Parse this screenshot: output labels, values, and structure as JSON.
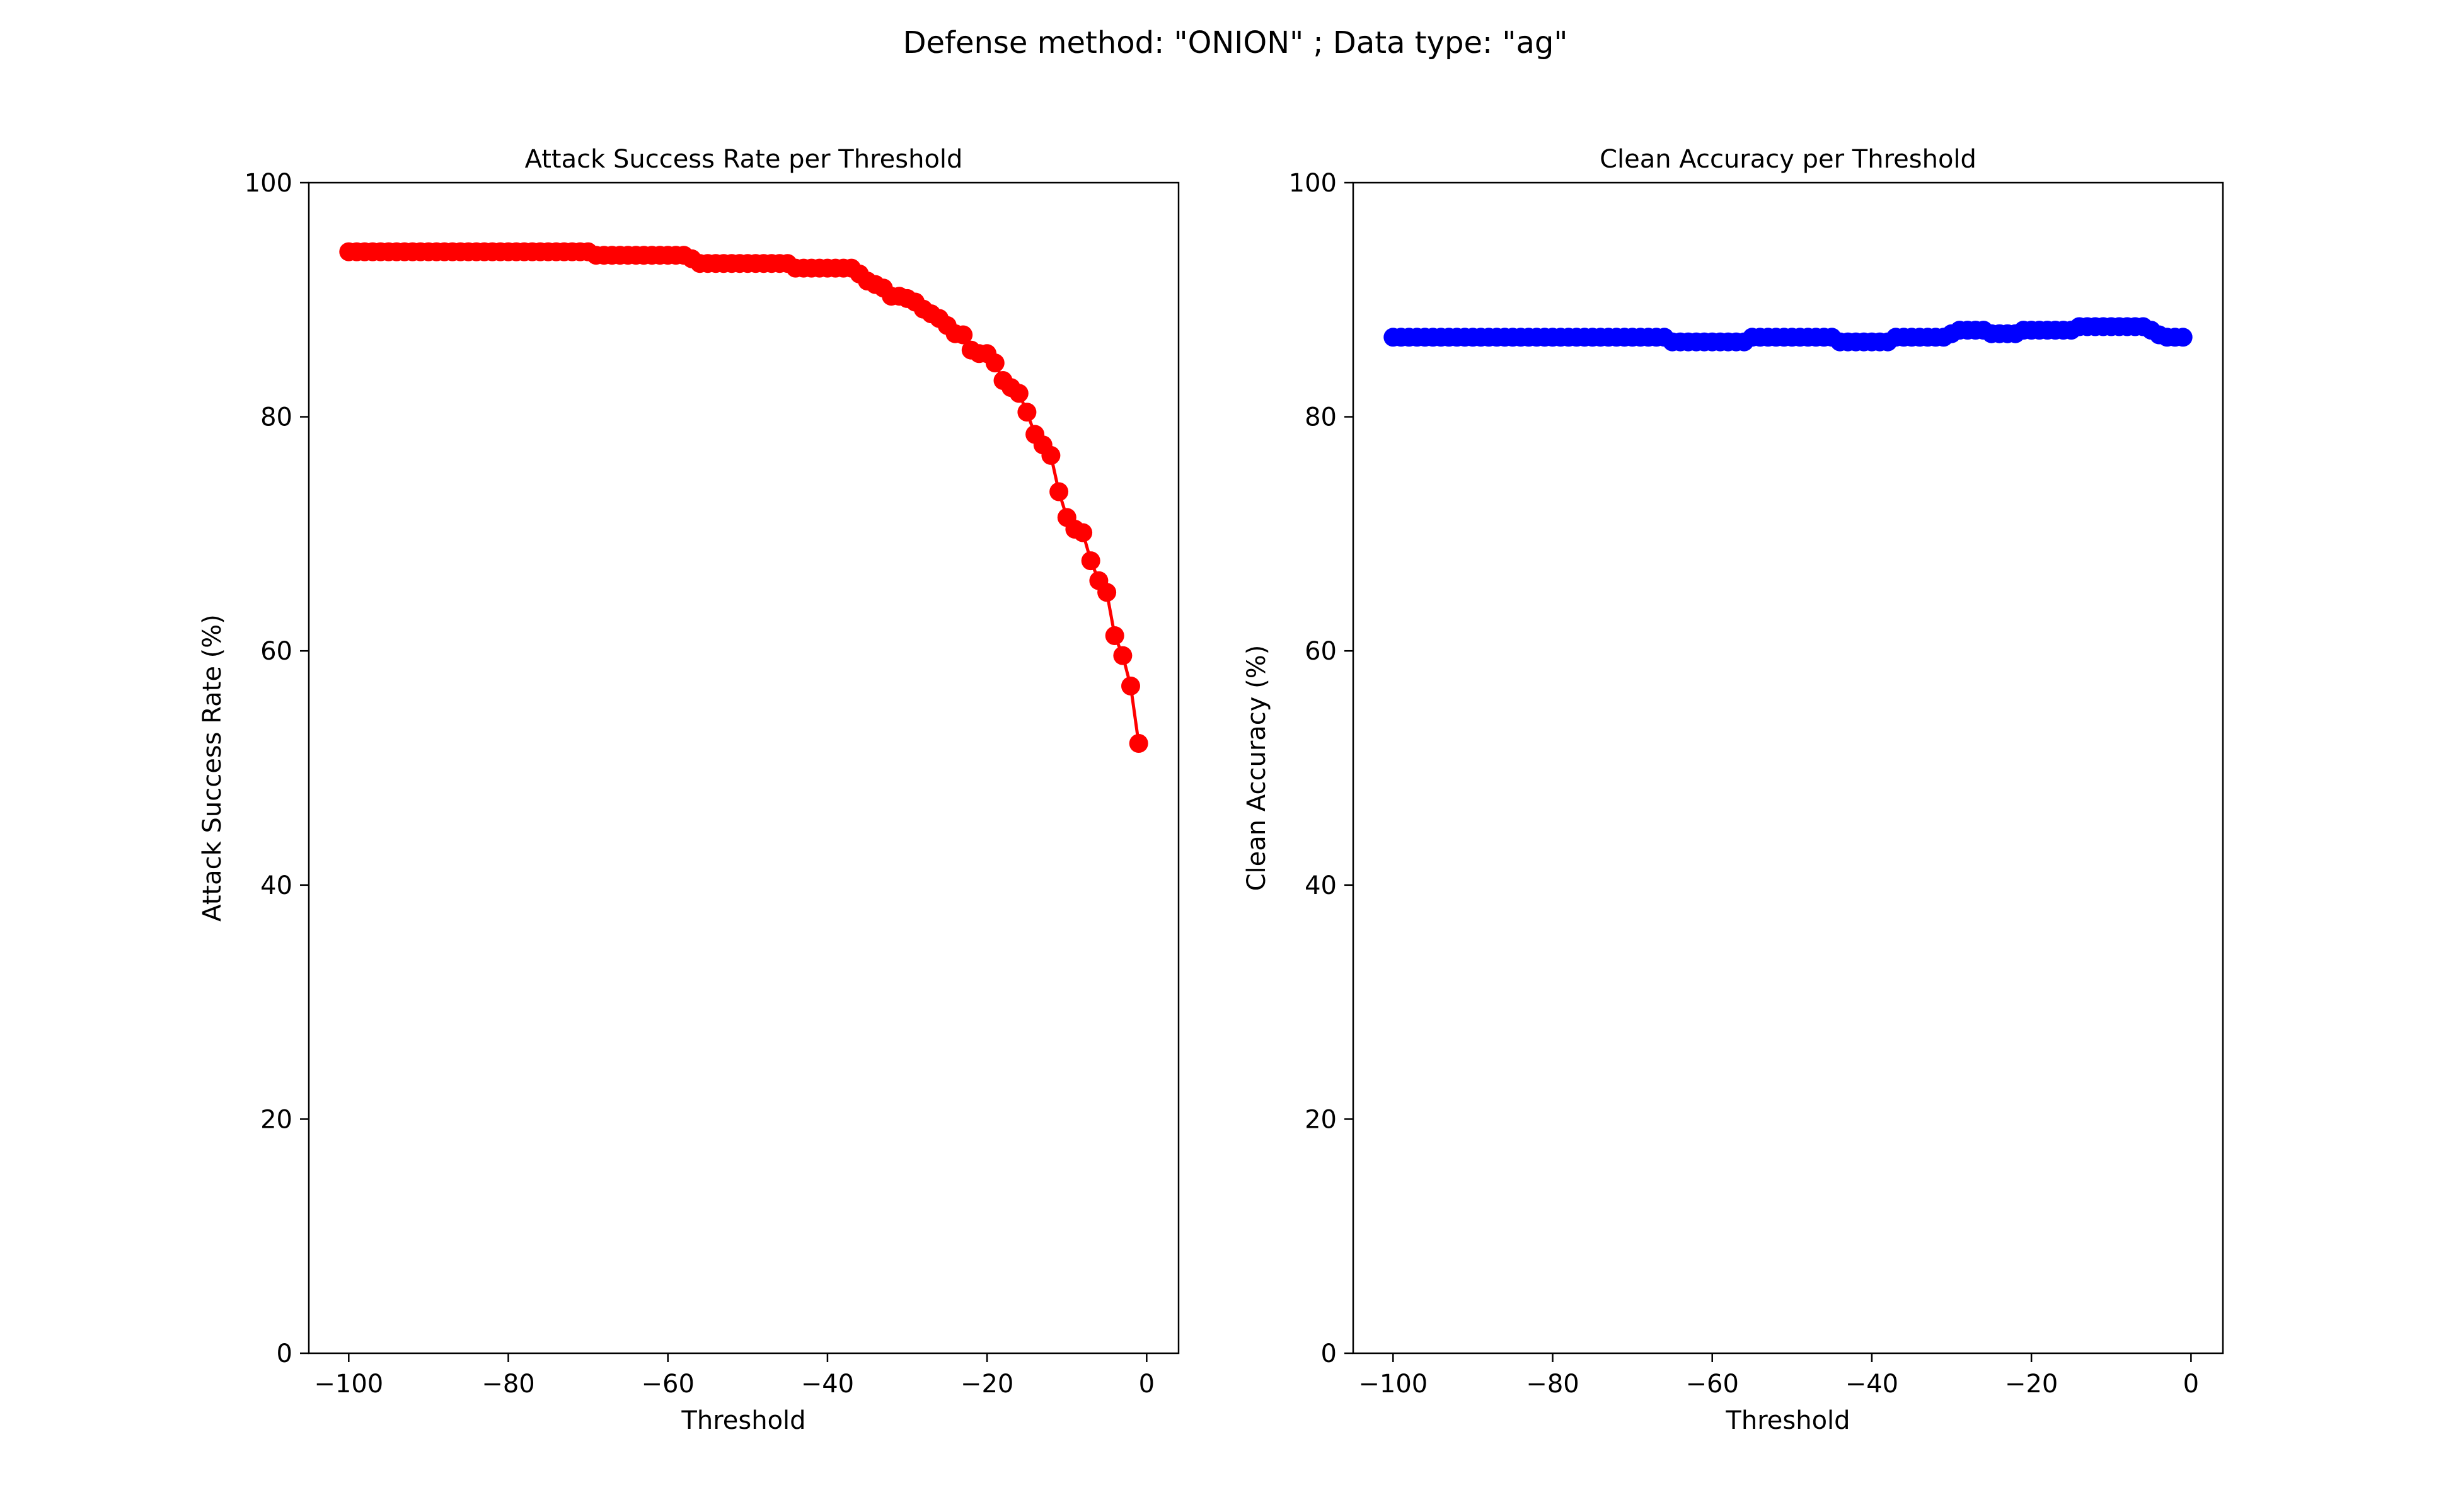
{
  "figure": {
    "suptitle": "Defense method: \"ONION\" ; Data type: \"ag\""
  },
  "chart_data": [
    {
      "type": "line",
      "title": "Attack Success Rate per Threshold",
      "xlabel": "Threshold",
      "ylabel": "Attack Success Rate (%)",
      "xlim": [
        -105,
        4
      ],
      "ylim": [
        0,
        100
      ],
      "xticks": [
        -100,
        -80,
        -60,
        -40,
        -20,
        0
      ],
      "xtick_labels": [
        "−100",
        "−80",
        "−60",
        "−40",
        "−20",
        "0"
      ],
      "yticks": [
        0,
        20,
        40,
        60,
        80,
        100
      ],
      "ytick_labels": [
        "0",
        "20",
        "40",
        "60",
        "80",
        "100"
      ],
      "grid": false,
      "series": [
        {
          "color": "#ff0000",
          "marker": "circle",
          "x": [
            -100,
            -99,
            -98,
            -97,
            -96,
            -95,
            -94,
            -93,
            -92,
            -91,
            -90,
            -89,
            -88,
            -87,
            -86,
            -85,
            -84,
            -83,
            -82,
            -81,
            -80,
            -79,
            -78,
            -77,
            -76,
            -75,
            -74,
            -73,
            -72,
            -71,
            -70,
            -69,
            -68,
            -67,
            -66,
            -65,
            -64,
            -63,
            -62,
            -61,
            -60,
            -59,
            -58,
            -57,
            -56,
            -55,
            -54,
            -53,
            -52,
            -51,
            -50,
            -49,
            -48,
            -47,
            -46,
            -45,
            -44,
            -43,
            -42,
            -41,
            -40,
            -39,
            -38,
            -37,
            -36,
            -35,
            -34,
            -33,
            -32,
            -31,
            -30,
            -29,
            -28,
            -27,
            -26,
            -25,
            -24,
            -23,
            -22,
            -21,
            -20,
            -19,
            -18,
            -17,
            -16,
            -15,
            -14,
            -13,
            -12,
            -11,
            -10,
            -9,
            -8,
            -7,
            -6,
            -5,
            -4,
            -3,
            -2,
            -1
          ],
          "y": [
            94.1,
            94.1,
            94.1,
            94.1,
            94.1,
            94.1,
            94.1,
            94.1,
            94.1,
            94.1,
            94.1,
            94.1,
            94.1,
            94.1,
            94.1,
            94.1,
            94.1,
            94.1,
            94.1,
            94.1,
            94.1,
            94.1,
            94.1,
            94.1,
            94.1,
            94.1,
            94.1,
            94.1,
            94.1,
            94.1,
            94.1,
            93.8,
            93.8,
            93.8,
            93.8,
            93.8,
            93.8,
            93.8,
            93.8,
            93.8,
            93.8,
            93.8,
            93.8,
            93.5,
            93.1,
            93.1,
            93.1,
            93.1,
            93.1,
            93.1,
            93.1,
            93.1,
            93.1,
            93.1,
            93.1,
            93.1,
            92.7,
            92.7,
            92.7,
            92.7,
            92.7,
            92.7,
            92.7,
            92.7,
            92.2,
            91.6,
            91.3,
            91.0,
            90.3,
            90.3,
            90.1,
            89.8,
            89.2,
            88.8,
            88.4,
            87.8,
            87.1,
            87.0,
            85.7,
            85.4,
            85.4,
            84.6,
            83.1,
            82.5,
            82.0,
            80.4,
            78.5,
            77.6,
            76.7,
            73.6,
            71.4,
            70.4,
            70.1,
            67.7,
            66.0,
            65.0,
            61.3,
            59.6,
            57.0,
            52.1
          ]
        }
      ]
    },
    {
      "type": "line",
      "title": "Clean Accuracy per Threshold",
      "xlabel": "Threshold",
      "ylabel": "Clean Accuracy (%)",
      "xlim": [
        -105,
        4
      ],
      "ylim": [
        0,
        100
      ],
      "xticks": [
        -100,
        -80,
        -60,
        -40,
        -20,
        0
      ],
      "xtick_labels": [
        "−100",
        "−80",
        "−60",
        "−40",
        "−20",
        "0"
      ],
      "yticks": [
        0,
        20,
        40,
        60,
        80,
        100
      ],
      "ytick_labels": [
        "0",
        "20",
        "40",
        "60",
        "80",
        "100"
      ],
      "grid": false,
      "series": [
        {
          "color": "#0000ff",
          "marker": "circle",
          "x": [
            -100,
            -99,
            -98,
            -97,
            -96,
            -95,
            -94,
            -93,
            -92,
            -91,
            -90,
            -89,
            -88,
            -87,
            -86,
            -85,
            -84,
            -83,
            -82,
            -81,
            -80,
            -79,
            -78,
            -77,
            -76,
            -75,
            -74,
            -73,
            -72,
            -71,
            -70,
            -69,
            -68,
            -67,
            -66,
            -65,
            -64,
            -63,
            -62,
            -61,
            -60,
            -59,
            -58,
            -57,
            -56,
            -55,
            -54,
            -53,
            -52,
            -51,
            -50,
            -49,
            -48,
            -47,
            -46,
            -45,
            -44,
            -43,
            -42,
            -41,
            -40,
            -39,
            -38,
            -37,
            -36,
            -35,
            -34,
            -33,
            -32,
            -31,
            -30,
            -29,
            -28,
            -27,
            -26,
            -25,
            -24,
            -23,
            -22,
            -21,
            -20,
            -19,
            -18,
            -17,
            -16,
            -15,
            -14,
            -13,
            -12,
            -11,
            -10,
            -9,
            -8,
            -7,
            -6,
            -5,
            -4,
            -3,
            -2,
            -1
          ],
          "y": [
            86.8,
            86.8,
            86.8,
            86.8,
            86.8,
            86.8,
            86.8,
            86.8,
            86.8,
            86.8,
            86.8,
            86.8,
            86.8,
            86.8,
            86.8,
            86.8,
            86.8,
            86.8,
            86.8,
            86.8,
            86.8,
            86.8,
            86.8,
            86.8,
            86.8,
            86.8,
            86.8,
            86.8,
            86.8,
            86.8,
            86.8,
            86.8,
            86.8,
            86.8,
            86.8,
            86.4,
            86.4,
            86.4,
            86.4,
            86.4,
            86.4,
            86.4,
            86.4,
            86.4,
            86.4,
            86.8,
            86.8,
            86.8,
            86.8,
            86.8,
            86.8,
            86.8,
            86.8,
            86.8,
            86.8,
            86.8,
            86.4,
            86.4,
            86.4,
            86.4,
            86.4,
            86.4,
            86.4,
            86.8,
            86.8,
            86.8,
            86.8,
            86.8,
            86.8,
            86.8,
            87.1,
            87.4,
            87.4,
            87.4,
            87.4,
            87.1,
            87.1,
            87.1,
            87.1,
            87.4,
            87.4,
            87.4,
            87.4,
            87.4,
            87.4,
            87.4,
            87.7,
            87.7,
            87.7,
            87.7,
            87.7,
            87.7,
            87.7,
            87.7,
            87.7,
            87.4,
            87.0,
            86.8,
            86.8,
            86.8
          ]
        }
      ]
    }
  ]
}
